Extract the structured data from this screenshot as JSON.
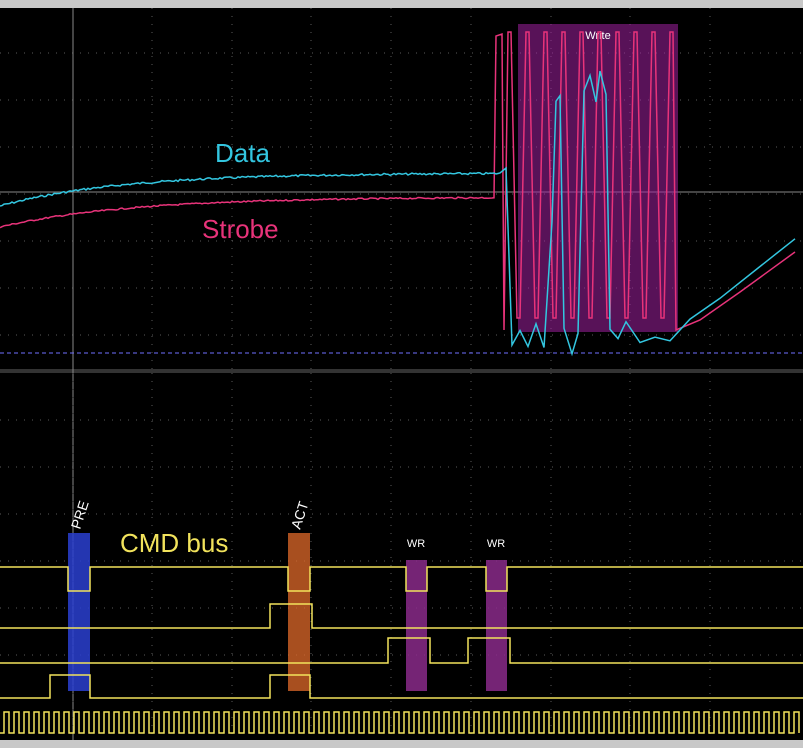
{
  "colors": {
    "background": "#000000",
    "grid": "#5a5a5a",
    "data_trace": "#33c6e0",
    "strobe_trace": "#e8337a",
    "cmd_bus": "#f2e35c",
    "write_window": "#a020a0",
    "pre_marker": "#2a3fd0",
    "act_marker": "#e06a2a",
    "wr_marker": "#8a2a8a",
    "reference": "#7070ff"
  },
  "labels": {
    "data": "Data",
    "strobe": "Strobe",
    "cmd_bus": "CMD bus",
    "write": "Write",
    "pre": "PRE",
    "act": "ACT",
    "wr_1": "WR",
    "wr_2": "WR"
  },
  "chart_data": {
    "type": "line",
    "title": "",
    "xlabel": "",
    "ylabel": "",
    "grid": true,
    "analog_panel": {
      "series": [
        {
          "name": "Data",
          "trace": "smooth rise then burst of toggles during Write window then recovery ramp"
        },
        {
          "name": "Strobe",
          "trace": "smooth rise then toggling strobe during Write window then recovery ramp"
        }
      ],
      "annotations": [
        "Write"
      ]
    },
    "digital_panel": {
      "signals": [
        "CMD bus line 1",
        "CMD bus line 2",
        "CMD bus line 3",
        "CMD bus line 4",
        "clock"
      ],
      "commands": [
        "PRE",
        "ACT",
        "WR",
        "WR"
      ]
    }
  }
}
